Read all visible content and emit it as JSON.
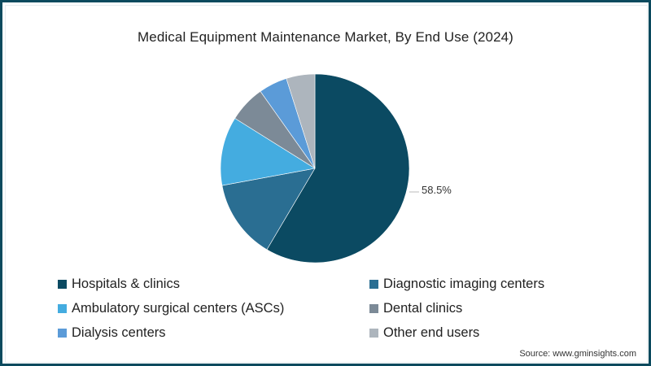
{
  "chart_data": {
    "type": "pie",
    "title": "Medical Equipment Maintenance Market, By End Use (2024)",
    "categories": [
      "Hospitals & clinics",
      "Diagnostic imaging centers",
      "Ambulatory surgical centers (ASCs)",
      "Dental clinics",
      "Dialysis centers",
      "Other end users"
    ],
    "values": [
      58.5,
      13.6,
      11.8,
      6.3,
      4.9,
      4.9
    ],
    "colors": [
      "#0b4a62",
      "#2a6e92",
      "#44ace0",
      "#7c8a97",
      "#5b9bd8",
      "#adb5bd"
    ],
    "data_labels": [
      {
        "category": "Hospitals & clinics",
        "text": "58.5%"
      }
    ],
    "start_angle": "12 o'clock, clockwise",
    "legend_position": "bottom"
  },
  "header": {
    "title": "Medical Equipment Maintenance Market, By End Use (2024)"
  },
  "labels": {
    "hospitals_pct": "58.5%"
  },
  "legend": {
    "items": [
      {
        "label": "Hospitals & clinics",
        "color": "#0b4a62"
      },
      {
        "label": "Diagnostic imaging centers",
        "color": "#2a6e92"
      },
      {
        "label": "Ambulatory surgical centers (ASCs)",
        "color": "#44ace0"
      },
      {
        "label": "Dental clinics",
        "color": "#7c8a97"
      },
      {
        "label": "Dialysis centers",
        "color": "#5b9bd8"
      },
      {
        "label": "Other end users",
        "color": "#adb5bd"
      }
    ]
  },
  "footer": {
    "source": "Source: www.gminsights.com"
  },
  "theme": {
    "border": "#0b4a5e"
  }
}
